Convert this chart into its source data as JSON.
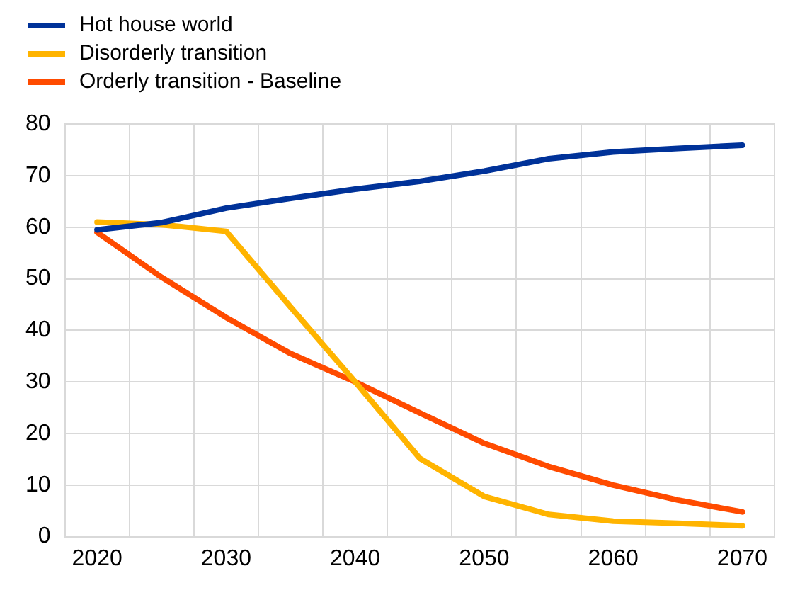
{
  "chart_data": {
    "type": "line",
    "categories": [
      "2020",
      null,
      "2030",
      null,
      "2040",
      null,
      "2050",
      null,
      "2060",
      null,
      "2070"
    ],
    "series": [
      {
        "name": "Hot house world",
        "color": "#003299",
        "values": [
          59.5,
          60.9,
          63.7,
          65.6,
          67.4,
          68.9,
          70.9,
          73.3,
          74.6,
          75.3,
          75.9
        ]
      },
      {
        "name": "Disorderly transition",
        "color": "#ffb400",
        "values": [
          61,
          60.5,
          59.2,
          44.5,
          30,
          15.2,
          7.8,
          4.3,
          3,
          2.6,
          2.1
        ]
      },
      {
        "name": "Orderly transition - Baseline",
        "color": "#ff4b00",
        "values": [
          59,
          50.3,
          42.5,
          35.5,
          30,
          24,
          18.1,
          13.6,
          10,
          7.1,
          4.8
        ]
      }
    ],
    "ylim": [
      0,
      80
    ],
    "yticks": [
      0,
      10,
      20,
      30,
      40,
      50,
      60,
      70,
      80
    ],
    "grid": true,
    "legend": "top left",
    "marker": "none",
    "line_style": "solid"
  }
}
